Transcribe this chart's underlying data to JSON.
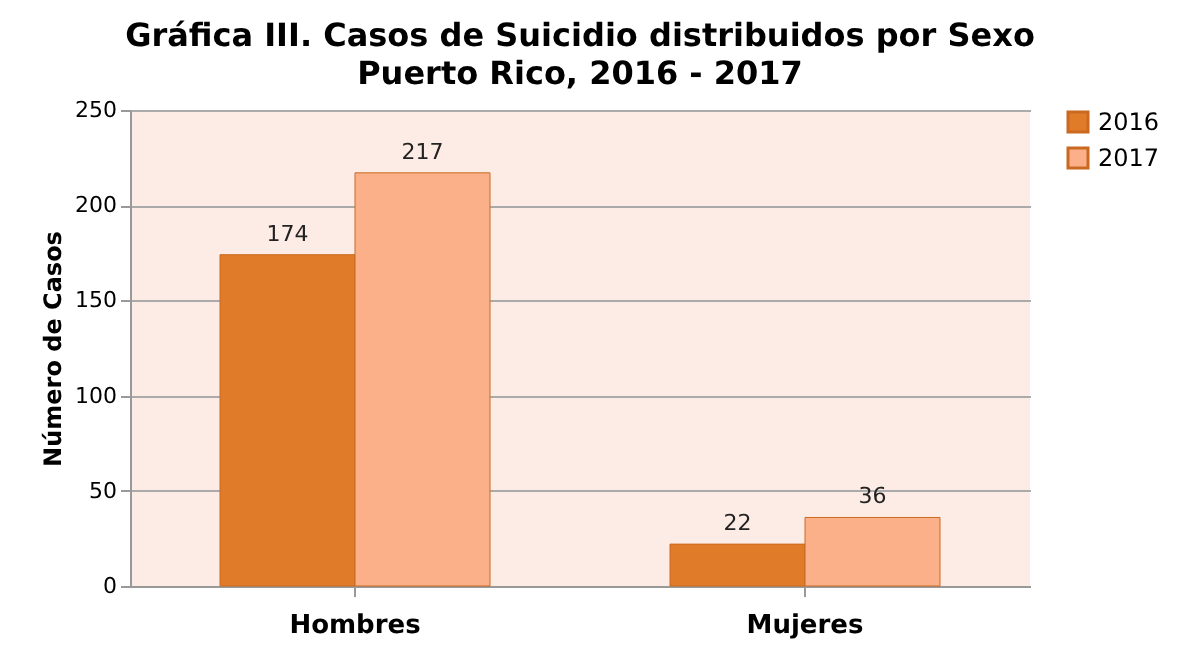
{
  "chart_data": {
    "type": "bar",
    "title": "Gráfica III. Casos de Suicidio distribuidos por Sexo",
    "subtitle": "Puerto Rico, 2016 - 2017",
    "ylabel": "Número de Casos",
    "categories": [
      "Hombres",
      "Mujeres"
    ],
    "series": [
      {
        "name": "2016",
        "color": "#e07b2a",
        "values": [
          174,
          22
        ]
      },
      {
        "name": "2017",
        "color": "#fbb08a",
        "values": [
          217,
          36
        ]
      }
    ],
    "ylim": [
      0,
      250
    ],
    "yticks": [
      0,
      50,
      100,
      150,
      200,
      250
    ],
    "grid": "y",
    "legend": "right",
    "data_labels": true
  }
}
